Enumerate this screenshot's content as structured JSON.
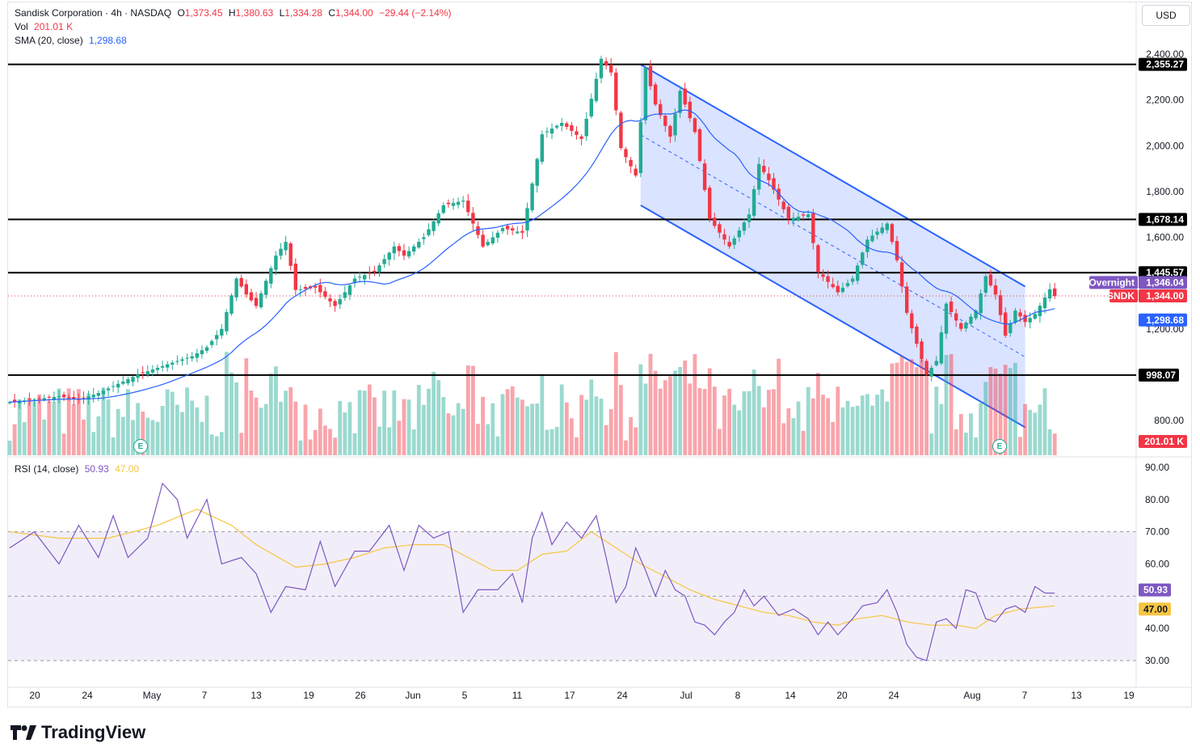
{
  "header": {
    "symbol": "Sandisk Corporation · 4h · NASDAQ",
    "o_label": "O",
    "o": "1,373.45",
    "h_label": "H",
    "h": "1,380.63",
    "l_label": "L",
    "l": "1,334.28",
    "c_label": "C",
    "c": "1,344.00",
    "change": "−29.44 (−2.14%)",
    "vol_label": "Vol",
    "vol": "201.01 K",
    "sma_label": "SMA (20, close)",
    "sma": "1,298.68"
  },
  "currency": "USD",
  "rsi_legend": {
    "label": "RSI (14, close)",
    "rsi": "50.93",
    "ma": "47.00"
  },
  "price_scale_labels": [
    "2,400.00",
    "2,200.00",
    "2,000.00",
    "1,800.00",
    "1,600.00",
    "1,200.00",
    "800.00"
  ],
  "rsi_scale_labels": [
    "90.00",
    "80.00",
    "70.00",
    "60.00",
    "40.00",
    "30.00"
  ],
  "time_labels": [
    "20",
    "24",
    "May",
    "7",
    "13",
    "19",
    "26",
    "Jun",
    "5",
    "11",
    "17",
    "24",
    "Jul",
    "8",
    "14",
    "20",
    "24",
    "Aug",
    "7",
    "13",
    "19"
  ],
  "tags": {
    "level_2355": "2,355.27",
    "level_1678": "1,678.14",
    "level_1445": "1,445.57",
    "level_998": "998.07",
    "overnight_label": "Overnight",
    "overnight_value": "1,346.04",
    "ticker": "SNDK",
    "last_price": "1,344.00",
    "sma_value": "1,298.68",
    "volume_value": "201.01 K",
    "rsi_value": "50.93",
    "rsi_ma_value": "47.00"
  },
  "colors": {
    "up": "#22ab94",
    "down": "#f23645",
    "sma": "#2962ff",
    "rsi": "#7e57c2",
    "rsi_ma": "#f7c543",
    "channel": "#2962ff",
    "channel_fill": "#d3deff",
    "level": "#000000"
  },
  "footer": {
    "brand": "TradingView"
  },
  "chart_data": {
    "type": "candlestick",
    "timeframe": "4h",
    "price_range": [
      700,
      2450
    ],
    "rsi_range": [
      25,
      92
    ],
    "horizontal_levels": [
      2355.27,
      1678.14,
      1445.57,
      998.07
    ],
    "channel": {
      "upper_start": 2355,
      "upper_end": 1385,
      "lower_start": 1740,
      "lower_end": 770
    },
    "anchors": [
      {
        "i": 0,
        "p": 880
      },
      {
        "i": 10,
        "p": 905
      },
      {
        "i": 14,
        "p": 890
      },
      {
        "i": 18,
        "p": 920
      },
      {
        "i": 22,
        "p": 960
      },
      {
        "i": 26,
        "p": 1000
      },
      {
        "i": 30,
        "p": 1030
      },
      {
        "i": 34,
        "p": 1060
      },
      {
        "i": 37,
        "p": 1080
      },
      {
        "i": 40,
        "p": 1120
      },
      {
        "i": 43,
        "p": 1200
      },
      {
        "i": 46,
        "p": 1420
      },
      {
        "i": 48,
        "p": 1350
      },
      {
        "i": 50,
        "p": 1300
      },
      {
        "i": 54,
        "p": 1520
      },
      {
        "i": 56,
        "p": 1580
      },
      {
        "i": 58,
        "p": 1370
      },
      {
        "i": 62,
        "p": 1380
      },
      {
        "i": 66,
        "p": 1300
      },
      {
        "i": 70,
        "p": 1420
      },
      {
        "i": 74,
        "p": 1450
      },
      {
        "i": 78,
        "p": 1560
      },
      {
        "i": 80,
        "p": 1520
      },
      {
        "i": 84,
        "p": 1600
      },
      {
        "i": 88,
        "p": 1740
      },
      {
        "i": 92,
        "p": 1760
      },
      {
        "i": 96,
        "p": 1560
      },
      {
        "i": 100,
        "p": 1640
      },
      {
        "i": 104,
        "p": 1620
      },
      {
        "i": 108,
        "p": 2050
      },
      {
        "i": 112,
        "p": 2100
      },
      {
        "i": 116,
        "p": 2030
      },
      {
        "i": 120,
        "p": 2380
      },
      {
        "i": 122,
        "p": 2320
      },
      {
        "i": 124,
        "p": 1990
      },
      {
        "i": 127,
        "p": 1870
      },
      {
        "i": 129,
        "p": 2340
      },
      {
        "i": 131,
        "p": 2180
      },
      {
        "i": 134,
        "p": 2040
      },
      {
        "i": 136,
        "p": 2240
      },
      {
        "i": 139,
        "p": 2060
      },
      {
        "i": 142,
        "p": 1680
      },
      {
        "i": 146,
        "p": 1560
      },
      {
        "i": 150,
        "p": 1700
      },
      {
        "i": 152,
        "p": 1920
      },
      {
        "i": 154,
        "p": 1850
      },
      {
        "i": 158,
        "p": 1680
      },
      {
        "i": 162,
        "p": 1700
      },
      {
        "i": 164,
        "p": 1450
      },
      {
        "i": 168,
        "p": 1360
      },
      {
        "i": 171,
        "p": 1420
      },
      {
        "i": 174,
        "p": 1590
      },
      {
        "i": 178,
        "p": 1660
      },
      {
        "i": 180,
        "p": 1500
      },
      {
        "i": 182,
        "p": 1270
      },
      {
        "i": 186,
        "p": 1000
      },
      {
        "i": 188,
        "p": 1060
      },
      {
        "i": 190,
        "p": 1310
      },
      {
        "i": 193,
        "p": 1200
      },
      {
        "i": 196,
        "p": 1280
      },
      {
        "i": 198,
        "p": 1430
      },
      {
        "i": 200,
        "p": 1350
      },
      {
        "i": 202,
        "p": 1170
      },
      {
        "i": 204,
        "p": 1280
      },
      {
        "i": 206,
        "p": 1230
      },
      {
        "i": 208,
        "p": 1265
      },
      {
        "i": 211,
        "p": 1373
      },
      {
        "i": 212,
        "p": 1344
      }
    ],
    "rsi": [
      {
        "i": 0,
        "v": 65
      },
      {
        "i": 5,
        "v": 70
      },
      {
        "i": 10,
        "v": 60
      },
      {
        "i": 14,
        "v": 72
      },
      {
        "i": 18,
        "v": 62
      },
      {
        "i": 21,
        "v": 75
      },
      {
        "i": 24,
        "v": 62
      },
      {
        "i": 28,
        "v": 68
      },
      {
        "i": 31,
        "v": 85
      },
      {
        "i": 34,
        "v": 80
      },
      {
        "i": 36,
        "v": 68
      },
      {
        "i": 40,
        "v": 80
      },
      {
        "i": 43,
        "v": 60
      },
      {
        "i": 47,
        "v": 62
      },
      {
        "i": 50,
        "v": 57
      },
      {
        "i": 53,
        "v": 45
      },
      {
        "i": 56,
        "v": 53
      },
      {
        "i": 60,
        "v": 52
      },
      {
        "i": 63,
        "v": 67
      },
      {
        "i": 66,
        "v": 53
      },
      {
        "i": 70,
        "v": 64
      },
      {
        "i": 73,
        "v": 64
      },
      {
        "i": 77,
        "v": 72
      },
      {
        "i": 80,
        "v": 58
      },
      {
        "i": 83,
        "v": 72
      },
      {
        "i": 86,
        "v": 68
      },
      {
        "i": 89,
        "v": 70
      },
      {
        "i": 92,
        "v": 45
      },
      {
        "i": 95,
        "v": 52
      },
      {
        "i": 99,
        "v": 52
      },
      {
        "i": 102,
        "v": 57
      },
      {
        "i": 104,
        "v": 48
      },
      {
        "i": 106,
        "v": 68
      },
      {
        "i": 108,
        "v": 76
      },
      {
        "i": 110,
        "v": 66
      },
      {
        "i": 113,
        "v": 73
      },
      {
        "i": 116,
        "v": 68
      },
      {
        "i": 119,
        "v": 75
      },
      {
        "i": 121,
        "v": 62
      },
      {
        "i": 123,
        "v": 48
      },
      {
        "i": 125,
        "v": 53
      },
      {
        "i": 127,
        "v": 65
      },
      {
        "i": 129,
        "v": 58
      },
      {
        "i": 131,
        "v": 50
      },
      {
        "i": 133,
        "v": 58
      },
      {
        "i": 135,
        "v": 52
      },
      {
        "i": 137,
        "v": 50
      },
      {
        "i": 139,
        "v": 42
      },
      {
        "i": 141,
        "v": 41
      },
      {
        "i": 143,
        "v": 38
      },
      {
        "i": 145,
        "v": 42
      },
      {
        "i": 147,
        "v": 45
      },
      {
        "i": 149,
        "v": 52
      },
      {
        "i": 151,
        "v": 47
      },
      {
        "i": 153,
        "v": 50
      },
      {
        "i": 156,
        "v": 44
      },
      {
        "i": 159,
        "v": 46
      },
      {
        "i": 162,
        "v": 43
      },
      {
        "i": 164,
        "v": 38
      },
      {
        "i": 166,
        "v": 42
      },
      {
        "i": 168,
        "v": 38
      },
      {
        "i": 171,
        "v": 43
      },
      {
        "i": 173,
        "v": 47
      },
      {
        "i": 176,
        "v": 48
      },
      {
        "i": 178,
        "v": 52
      },
      {
        "i": 180,
        "v": 45
      },
      {
        "i": 182,
        "v": 35
      },
      {
        "i": 184,
        "v": 31
      },
      {
        "i": 186,
        "v": 30
      },
      {
        "i": 188,
        "v": 42
      },
      {
        "i": 190,
        "v": 43
      },
      {
        "i": 192,
        "v": 40
      },
      {
        "i": 194,
        "v": 52
      },
      {
        "i": 196,
        "v": 51
      },
      {
        "i": 198,
        "v": 43
      },
      {
        "i": 200,
        "v": 42
      },
      {
        "i": 202,
        "v": 46
      },
      {
        "i": 204,
        "v": 47
      },
      {
        "i": 206,
        "v": 45
      },
      {
        "i": 208,
        "v": 53
      },
      {
        "i": 210,
        "v": 51
      },
      {
        "i": 212,
        "v": 50.93
      }
    ],
    "rsi_ma": [
      {
        "i": 0,
        "v": 70
      },
      {
        "i": 10,
        "v": 68
      },
      {
        "i": 20,
        "v": 68
      },
      {
        "i": 30,
        "v": 72
      },
      {
        "i": 38,
        "v": 77
      },
      {
        "i": 45,
        "v": 72
      },
      {
        "i": 50,
        "v": 66
      },
      {
        "i": 58,
        "v": 59
      },
      {
        "i": 64,
        "v": 60
      },
      {
        "i": 70,
        "v": 62
      },
      {
        "i": 76,
        "v": 65
      },
      {
        "i": 82,
        "v": 66
      },
      {
        "i": 88,
        "v": 66
      },
      {
        "i": 93,
        "v": 62
      },
      {
        "i": 98,
        "v": 58
      },
      {
        "i": 103,
        "v": 58
      },
      {
        "i": 108,
        "v": 63
      },
      {
        "i": 113,
        "v": 64
      },
      {
        "i": 118,
        "v": 70
      },
      {
        "i": 123,
        "v": 65
      },
      {
        "i": 128,
        "v": 60
      },
      {
        "i": 133,
        "v": 56
      },
      {
        "i": 138,
        "v": 52
      },
      {
        "i": 143,
        "v": 49
      },
      {
        "i": 148,
        "v": 47
      },
      {
        "i": 153,
        "v": 45
      },
      {
        "i": 158,
        "v": 44
      },
      {
        "i": 163,
        "v": 42
      },
      {
        "i": 168,
        "v": 41
      },
      {
        "i": 172,
        "v": 43
      },
      {
        "i": 177,
        "v": 44
      },
      {
        "i": 182,
        "v": 42
      },
      {
        "i": 187,
        "v": 41
      },
      {
        "i": 192,
        "v": 41
      },
      {
        "i": 196,
        "v": 40
      },
      {
        "i": 200,
        "v": 44
      },
      {
        "i": 205,
        "v": 46
      },
      {
        "i": 212,
        "v": 47.0
      }
    ]
  }
}
